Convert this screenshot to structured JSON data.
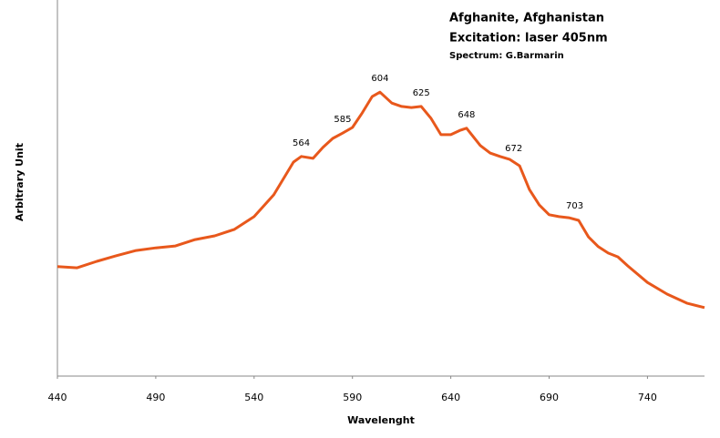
{
  "chart_data": {
    "type": "line",
    "title": "Afghanite, Afghanistan",
    "subtitle": "Excitation: laser 405nm",
    "credit": "Spectrum: G.Barmarin",
    "xlabel": "Wavelenght",
    "ylabel": "Arbitrary Unit",
    "color": "#e8581c",
    "xlim": [
      440,
      769
    ],
    "xticks": [
      440,
      490,
      540,
      590,
      640,
      690,
      740
    ],
    "ylim": [
      0,
      100
    ],
    "x": [
      440,
      450,
      460,
      470,
      480,
      490,
      500,
      510,
      520,
      530,
      540,
      550,
      560,
      564,
      570,
      575,
      580,
      585,
      590,
      595,
      600,
      604,
      610,
      615,
      620,
      625,
      630,
      635,
      640,
      645,
      648,
      655,
      660,
      665,
      670,
      675,
      680,
      685,
      690,
      695,
      700,
      705,
      710,
      715,
      720,
      725,
      730,
      740,
      750,
      760,
      769
    ],
    "values": [
      29.1,
      28.8,
      30.5,
      32.0,
      33.4,
      34.1,
      34.6,
      36.3,
      37.3,
      39.0,
      42.4,
      48.2,
      56.9,
      58.4,
      57.9,
      60.8,
      63.2,
      64.6,
      66.1,
      70.0,
      74.3,
      75.5,
      72.6,
      71.7,
      71.4,
      71.7,
      68.5,
      64.2,
      64.2,
      65.4,
      65.9,
      61.3,
      59.3,
      58.4,
      57.6,
      55.9,
      49.6,
      45.5,
      42.9,
      42.4,
      42.1,
      41.4,
      37.0,
      34.4,
      32.7,
      31.7,
      29.3,
      24.9,
      21.8,
      19.4,
      18.2
    ],
    "peak_labels": [
      564,
      585,
      604,
      625,
      648,
      672,
      703
    ]
  }
}
